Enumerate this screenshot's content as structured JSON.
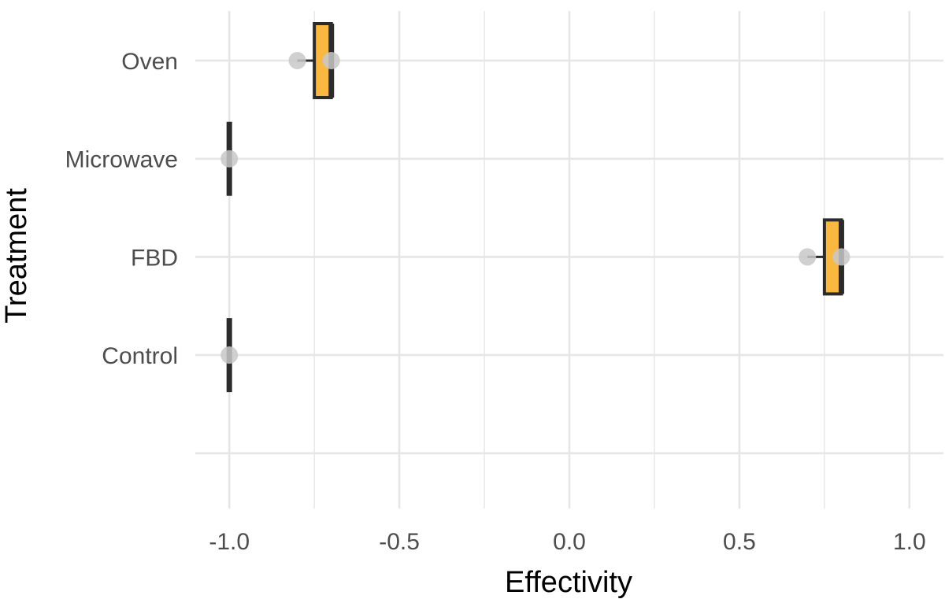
{
  "chart_data": {
    "type": "boxplot",
    "orientation": "horizontal",
    "title": "",
    "xlabel": "Effectivity",
    "ylabel": "Treatment",
    "xlim": [
      -1.1,
      1.1
    ],
    "x_ticks": [
      -1.0,
      -0.5,
      0.0,
      0.5,
      1.0
    ],
    "x_tick_labels": [
      "-1.0",
      "-0.5",
      "0.0",
      "0.5",
      "1.0"
    ],
    "categories": [
      "Oven",
      "Microwave",
      "FBD",
      "Control"
    ],
    "boxes": [
      {
        "category": "Oven",
        "min": -0.8,
        "q1": -0.75,
        "median": -0.7,
        "q3": -0.7,
        "max": -0.7
      },
      {
        "category": "Microwave",
        "min": -1.0,
        "q1": -1.0,
        "median": -1.0,
        "q3": -1.0,
        "max": -1.0
      },
      {
        "category": "FBD",
        "min": 0.7,
        "q1": 0.75,
        "median": 0.8,
        "q3": 0.8,
        "max": 0.8
      },
      {
        "category": "Control",
        "min": -1.0,
        "q1": -1.0,
        "median": -1.0,
        "q3": -1.0,
        "max": -1.0
      }
    ],
    "points": [
      {
        "category": "Oven",
        "x": -0.8
      },
      {
        "category": "Oven",
        "x": -0.7
      },
      {
        "category": "Microwave",
        "x": -1.0
      },
      {
        "category": "FBD",
        "x": 0.7
      },
      {
        "category": "FBD",
        "x": 0.8
      },
      {
        "category": "Control",
        "x": -1.0
      }
    ],
    "grid": true,
    "legend": "none",
    "colors": {
      "box_fill": "#fbb840",
      "box_stroke": "#2b2b2b",
      "point": "#c8c8c8",
      "grid": "#e6e6e6"
    }
  }
}
